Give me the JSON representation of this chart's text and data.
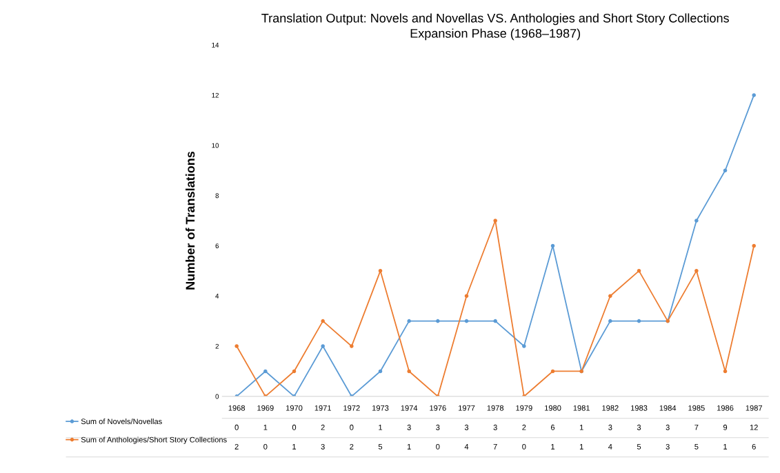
{
  "chart_data": {
    "type": "line",
    "title": "Translation Output: Novels and Novellas VS. Anthologies and Short Story Collections",
    "subtitle": "Expansion Phase (1968–1987)",
    "ylabel": "Number of Translations",
    "categories": [
      "1968",
      "1969",
      "1970",
      "1971",
      "1972",
      "1973",
      "1974",
      "1976",
      "1977",
      "1978",
      "1979",
      "1980",
      "1981",
      "1982",
      "1983",
      "1984",
      "1985",
      "1986",
      "1987"
    ],
    "series": [
      {
        "name": "Sum of Novels/Novellas",
        "color": "#5b9bd5",
        "values": [
          0,
          1,
          0,
          2,
          0,
          1,
          3,
          3,
          3,
          3,
          2,
          6,
          1,
          3,
          3,
          3,
          7,
          9,
          12
        ]
      },
      {
        "name": "Sum of Anthologies/Short Story Collections",
        "color": "#ed7d31",
        "values": [
          2,
          0,
          1,
          3,
          2,
          5,
          1,
          0,
          4,
          7,
          0,
          1,
          1,
          4,
          5,
          3,
          5,
          1,
          6
        ]
      }
    ],
    "ylim": [
      0,
      14
    ],
    "yticks": [
      0,
      2,
      4,
      6,
      8,
      10,
      12,
      14
    ],
    "grid": false,
    "legend": "bottom left",
    "marker": "circle",
    "line_style": "solid",
    "data_labels": true
  }
}
